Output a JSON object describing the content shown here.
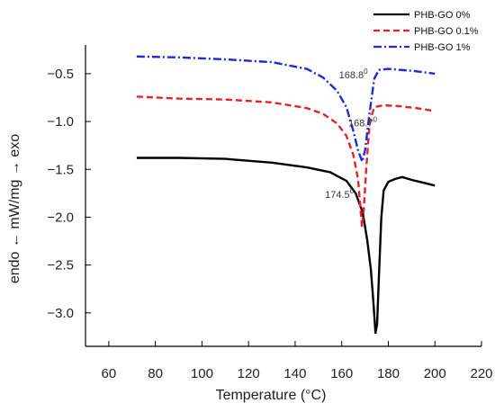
{
  "chart_data": {
    "type": "line",
    "title": "",
    "xlabel": "Temperature (°C)",
    "ylabel": "endo ← mW/mg → exo",
    "xlim": [
      50,
      220
    ],
    "ylim": [
      -3.35,
      -0.2
    ],
    "xticks": [
      60,
      80,
      100,
      120,
      140,
      160,
      180,
      200,
      220
    ],
    "yticks": [
      -0.5,
      -1.0,
      -1.5,
      -2.0,
      -2.5,
      -3.0
    ],
    "ytick_labels": [
      "−0.5",
      "−1.0",
      "−1.5",
      "−2.0",
      "−2.5",
      "−3.0"
    ],
    "grid": false,
    "legend_position": "top-right",
    "series": [
      {
        "name": "PHB-GO 0%",
        "color": "#000000",
        "dash": "solid",
        "points": [
          [
            72,
            -1.38
          ],
          [
            90,
            -1.38
          ],
          [
            110,
            -1.39
          ],
          [
            130,
            -1.43
          ],
          [
            145,
            -1.48
          ],
          [
            155,
            -1.53
          ],
          [
            162,
            -1.62
          ],
          [
            166,
            -1.75
          ],
          [
            169,
            -1.95
          ],
          [
            171,
            -2.25
          ],
          [
            172.5,
            -2.55
          ],
          [
            173.5,
            -2.85
          ],
          [
            174.5,
            -3.21
          ],
          [
            175.2,
            -3.12
          ],
          [
            176,
            -2.6
          ],
          [
            177,
            -2.0
          ],
          [
            178,
            -1.72
          ],
          [
            180,
            -1.63
          ],
          [
            183,
            -1.6
          ],
          [
            186,
            -1.58
          ],
          [
            190,
            -1.61
          ],
          [
            195,
            -1.64
          ],
          [
            200,
            -1.67
          ]
        ]
      },
      {
        "name": "PHB-GO 0.1%",
        "color": "#e8202a",
        "dash": "dashed",
        "points": [
          [
            72,
            -0.74
          ],
          [
            90,
            -0.76
          ],
          [
            110,
            -0.77
          ],
          [
            130,
            -0.8
          ],
          [
            145,
            -0.86
          ],
          [
            152,
            -0.92
          ],
          [
            158,
            -1.02
          ],
          [
            162,
            -1.15
          ],
          [
            165,
            -1.35
          ],
          [
            167,
            -1.6
          ],
          [
            168.7,
            -2.1
          ],
          [
            169.5,
            -1.9
          ],
          [
            170.5,
            -1.5
          ],
          [
            172,
            -1.0
          ],
          [
            174,
            -0.85
          ],
          [
            178,
            -0.83
          ],
          [
            185,
            -0.84
          ],
          [
            192,
            -0.86
          ],
          [
            200,
            -0.89
          ]
        ]
      },
      {
        "name": "PHB-GO 1%",
        "color": "#1a2bd9",
        "dash": "dashdot",
        "points": [
          [
            72,
            -0.32
          ],
          [
            90,
            -0.33
          ],
          [
            110,
            -0.35
          ],
          [
            130,
            -0.38
          ],
          [
            145,
            -0.45
          ],
          [
            152,
            -0.54
          ],
          [
            158,
            -0.68
          ],
          [
            162,
            -0.85
          ],
          [
            165,
            -1.1
          ],
          [
            167,
            -1.3
          ],
          [
            168.8,
            -1.42
          ],
          [
            170,
            -1.3
          ],
          [
            172,
            -0.9
          ],
          [
            174,
            -0.55
          ],
          [
            176,
            -0.46
          ],
          [
            180,
            -0.45
          ],
          [
            190,
            -0.47
          ],
          [
            200,
            -0.5
          ]
        ]
      }
    ],
    "annotations": [
      {
        "text": "168.8",
        "sup": "0",
        "x": 165,
        "y": -0.55
      },
      {
        "text": "168.7",
        "sup": "0",
        "x": 169,
        "y": -1.05
      },
      {
        "text": "174.5",
        "sup": "0",
        "x": 159,
        "y": -1.8
      }
    ]
  }
}
